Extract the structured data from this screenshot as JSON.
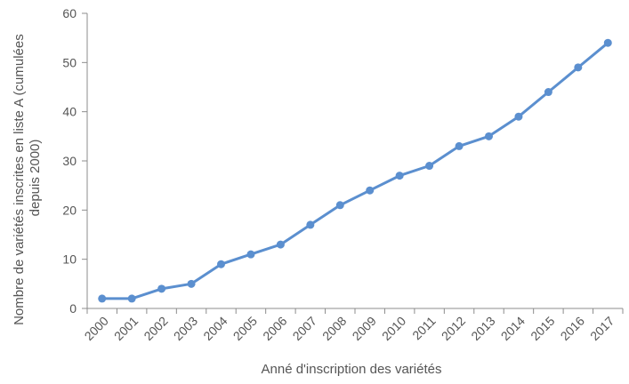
{
  "chart_data": {
    "type": "line",
    "title": "",
    "xlabel": "Anné d'inscription des variétés",
    "ylabel_lines": [
      "Nombre de variétés inscrites en liste A (cumulées",
      "depuis 2000)"
    ],
    "x": [
      "2000",
      "2001",
      "2002",
      "2003",
      "2004",
      "2005",
      "2006",
      "2007",
      "2008",
      "2009",
      "2010",
      "2011",
      "2012",
      "2013",
      "2014",
      "2015",
      "2016",
      "2017"
    ],
    "series": [
      {
        "values": [
          2,
          2,
          4,
          5,
          9,
          11,
          13,
          17,
          21,
          24,
          27,
          29,
          33,
          35,
          39,
          44,
          49,
          54
        ],
        "color": "#5b8fcf"
      }
    ],
    "ylim": [
      0,
      60
    ],
    "yticks": [
      "0",
      "10",
      "20",
      "30",
      "40",
      "50",
      "60"
    ],
    "grid": false,
    "legend": "none"
  }
}
